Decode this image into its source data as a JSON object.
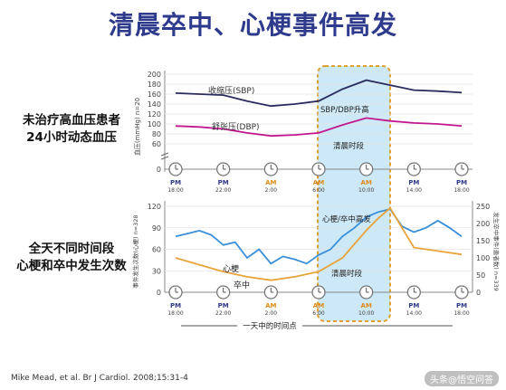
{
  "title": "清晨卒中、心梗事件高发",
  "top_left_label": [
    "未治疗高血压患者",
    "24小时动态血压"
  ],
  "bottom_left_label": [
    "全天不同时间段",
    "心梗和卒中发生次数"
  ],
  "citation": "Mike Mead, et al. Br J Cardiol. 2008;15:31-4",
  "watermark": "头条@悟空问答",
  "colors": {
    "title": "#2E3A8C",
    "sbp": "#2B2B5E",
    "dbp": "#C2188F",
    "mi": "#3A8FD8",
    "stroke": "#E8A33A",
    "highlight_fill": "#CDE9F7",
    "highlight_border": "#E0A030"
  },
  "chart_data": [
    {
      "type": "line",
      "ylabel": "血压(mmHg) n=20",
      "ylim": [
        0,
        200
      ],
      "yticks": [
        "200",
        "180",
        "160",
        "140",
        "120",
        "100",
        "80",
        "60",
        "0"
      ],
      "clock_marks": [
        {
          "period": "PM",
          "time": "18:00"
        },
        {
          "period": "PM",
          "time": "22:00"
        },
        {
          "period": "AM",
          "time": "2:00"
        },
        {
          "period": "AM",
          "time": "6:00"
        },
        {
          "period": "AM",
          "time": "10:00"
        },
        {
          "period": "PM",
          "time": "14:00"
        },
        {
          "period": "PM",
          "time": "18:00"
        }
      ],
      "x": [
        0,
        2,
        4,
        6,
        8,
        10,
        12,
        14,
        16,
        18,
        20,
        22,
        24
      ],
      "series": [
        {
          "name": "收缩压(SBP)",
          "values": [
            162,
            160,
            158,
            146,
            136,
            140,
            146,
            170,
            188,
            178,
            168,
            166,
            163
          ]
        },
        {
          "name": "舒张压(DBP)",
          "values": [
            96,
            94,
            90,
            82,
            76,
            78,
            82,
            98,
            112,
            106,
            102,
            100,
            96
          ]
        }
      ],
      "annotations": [
        "SBP/DBP升高",
        "清晨时段"
      ]
    },
    {
      "type": "line",
      "ylabel_left": "事件发生次数(心梗) n=328",
      "ylabel_right": "发生卒中事件(患者数) n=339",
      "ylim_left": [
        0,
        120
      ],
      "ylim_right": [
        0,
        250
      ],
      "yticks_left": [
        "120",
        "90",
        "60",
        "30",
        "0"
      ],
      "yticks_right": [
        "250",
        "200",
        "150",
        "100",
        "50",
        "0"
      ],
      "clock_marks": [
        {
          "period": "PM",
          "time": "18:00"
        },
        {
          "period": "PM",
          "time": "22:00"
        },
        {
          "period": "AM",
          "time": "2:00"
        },
        {
          "period": "AM",
          "time": "6:00"
        },
        {
          "period": "AM",
          "time": "10:00"
        },
        {
          "period": "PM",
          "time": "14:00"
        },
        {
          "period": "PM",
          "time": "18:00"
        }
      ],
      "xlabel": "一天中的时间点",
      "series": [
        {
          "name": "心梗",
          "axis": "left",
          "x": [
            0,
            1,
            2,
            3,
            4,
            5,
            6,
            7,
            8,
            9,
            10,
            11,
            12,
            13,
            14,
            15,
            16,
            17,
            18,
            19,
            20,
            21,
            22,
            23,
            24
          ],
          "values": [
            78,
            82,
            86,
            80,
            66,
            70,
            48,
            60,
            40,
            50,
            46,
            40,
            52,
            60,
            78,
            90,
            105,
            112,
            116,
            92,
            84,
            90,
            100,
            90,
            78
          ]
        },
        {
          "name": "卒中",
          "axis": "right",
          "x": [
            0,
            2,
            4,
            6,
            8,
            10,
            12,
            14,
            16,
            17,
            18,
            20,
            22,
            24
          ],
          "values": [
            100,
            80,
            60,
            45,
            35,
            45,
            60,
            100,
            180,
            215,
            245,
            130,
            120,
            110
          ]
        }
      ],
      "annotations": [
        "心梗/卒中高发",
        "清晨时段"
      ]
    }
  ]
}
